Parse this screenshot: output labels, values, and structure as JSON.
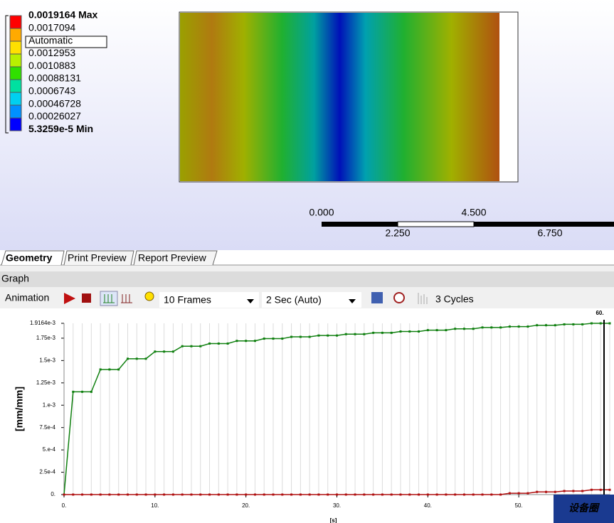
{
  "legend": {
    "labels": [
      "0.0019164 Max",
      "0.0017094",
      "Automatic",
      "0.0012953",
      "0.0010883",
      "0.00088131",
      "0.0006743",
      "0.00046728",
      "0.00026027",
      "5.3259e-5 Min"
    ]
  },
  "scale_bar": {
    "top_labels": [
      "0.000",
      "4.500"
    ],
    "bottom_labels": [
      "2.250",
      "6.750"
    ]
  },
  "tabs": [
    "Geometry",
    "Print Preview",
    "Report Preview"
  ],
  "graph_panel": {
    "title": "Graph",
    "toolbar": {
      "animation": "Animation",
      "frames": "10 Frames",
      "duration": "2 Sec (Auto)",
      "cycles": "3 Cycles"
    }
  },
  "chart_data": {
    "type": "line",
    "ylabel": "[mm/mm]",
    "xlabel": "[s]",
    "x": [
      0,
      1,
      2,
      3,
      4,
      5,
      6,
      7,
      8,
      9,
      10,
      11,
      12,
      13,
      14,
      15,
      16,
      17,
      18,
      19,
      20,
      21,
      22,
      23,
      24,
      25,
      26,
      27,
      28,
      29,
      30,
      31,
      32,
      33,
      34,
      35,
      36,
      37,
      38,
      39,
      40,
      41,
      42,
      43,
      44,
      45,
      46,
      47,
      48,
      49,
      50,
      51,
      52,
      53,
      54,
      55,
      56,
      57,
      58,
      59,
      60
    ],
    "series": [
      {
        "color": "#108010",
        "values": [
          0,
          0.00115,
          0.00115,
          0.00115,
          0.0014,
          0.0014,
          0.0014,
          0.00152,
          0.00152,
          0.00152,
          0.0016,
          0.0016,
          0.0016,
          0.00166,
          0.00166,
          0.00166,
          0.00169,
          0.00169,
          0.00169,
          0.00172,
          0.00172,
          0.00172,
          0.001745,
          0.001745,
          0.001745,
          0.001765,
          0.001765,
          0.001765,
          0.00178,
          0.00178,
          0.00178,
          0.001795,
          0.001795,
          0.001795,
          0.00181,
          0.00181,
          0.00181,
          0.001825,
          0.001825,
          0.001825,
          0.00184,
          0.00184,
          0.00184,
          0.001855,
          0.001855,
          0.001855,
          0.00187,
          0.00187,
          0.00187,
          0.00188,
          0.00188,
          0.00188,
          0.001895,
          0.001895,
          0.001895,
          0.001905,
          0.001905,
          0.001905,
          0.0019164,
          0.0019164,
          0.0019164
        ]
      },
      {
        "color": "#b01010",
        "values": [
          0,
          0,
          0,
          0,
          0,
          0,
          0,
          0,
          0,
          0,
          0,
          0,
          0,
          0,
          0,
          0,
          0,
          0,
          0,
          0,
          0,
          0,
          0,
          0,
          0,
          0,
          0,
          0,
          0,
          0,
          0,
          0,
          0,
          0,
          0,
          0,
          0,
          0,
          0,
          0,
          0,
          0,
          0,
          0,
          0,
          0,
          0,
          0,
          0,
          1.5e-05,
          1.5e-05,
          1.5e-05,
          3e-05,
          3e-05,
          3e-05,
          4e-05,
          4e-05,
          4e-05,
          5.3259e-05,
          5.3259e-05,
          5.3259e-05
        ]
      }
    ],
    "xlim": [
      0,
      60
    ],
    "ylim": [
      0,
      0.0019164
    ],
    "xticks": [
      {
        "value": 0,
        "label": "0."
      },
      {
        "value": 10,
        "label": "10."
      },
      {
        "value": 20,
        "label": "20."
      },
      {
        "value": 30,
        "label": "30."
      },
      {
        "value": 40,
        "label": "40."
      },
      {
        "value": 50,
        "label": "50."
      }
    ],
    "yticks": [
      {
        "value": 0,
        "label": "0."
      },
      {
        "value": 0.00025,
        "label": "2.5e-4"
      },
      {
        "value": 0.0005,
        "label": "5.e-4"
      },
      {
        "value": 0.00075,
        "label": "7.5e-4"
      },
      {
        "value": 0.001,
        "label": "1.e-3"
      },
      {
        "value": 0.00125,
        "label": "1.25e-3"
      },
      {
        "value": 0.0015,
        "label": "1.5e-3"
      },
      {
        "value": 0.00175,
        "label": "1.75e-3"
      },
      {
        "value": 0.0019164,
        "label": "1.9164e-3"
      }
    ],
    "current_time": {
      "value": 60,
      "label": "60."
    }
  },
  "watermark": "设备圈"
}
